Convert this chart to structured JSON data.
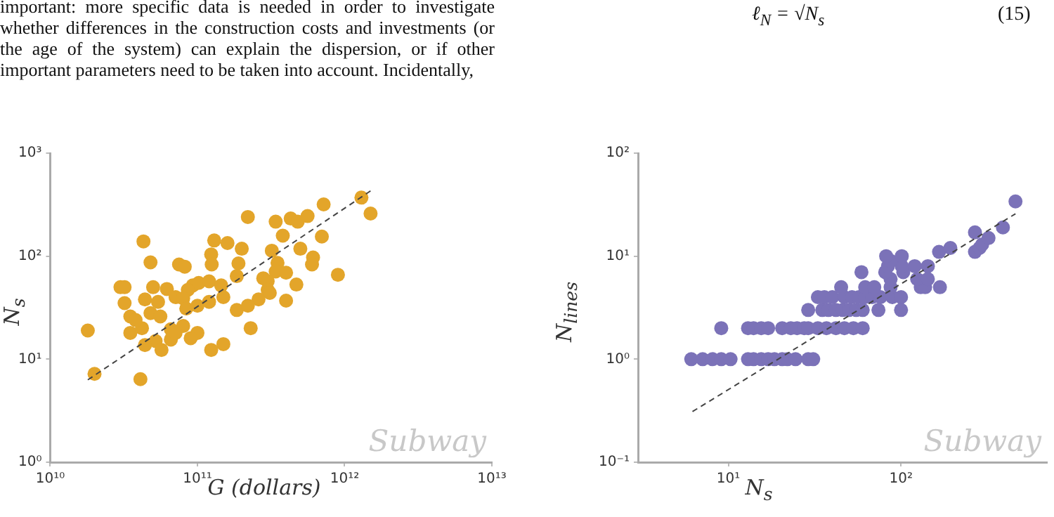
{
  "chart_data": [
    {
      "type": "scatter",
      "xlabel": "G (dollars)",
      "ylabel": "N$_{s}$",
      "log": "xy",
      "grid": false,
      "legend": false,
      "marker": "circle",
      "xlim": [
        10000000000.0,
        10000000000000.0
      ],
      "xticks": [
        {
          "value": 10000000000.0,
          "label": "10¹⁰"
        },
        {
          "value": 100000000000.0,
          "label": "10¹¹"
        },
        {
          "value": 1000000000000.0,
          "label": "10¹²"
        },
        {
          "value": 10000000000000.0,
          "label": "10¹³"
        }
      ],
      "ylim": [
        1,
        1000
      ],
      "yticks": [
        {
          "value": 1,
          "label": "10⁰"
        },
        {
          "value": 10,
          "label": "10¹"
        },
        {
          "value": 100,
          "label": "10²"
        },
        {
          "value": 1000,
          "label": "10³"
        }
      ],
      "annotations": [
        "Subway",
        "important: more specific data is needed in order to investigate whether differences in the construction costs and investments (or the age of the system) can explain the dispersion, or if other important parameters need to be taken into account. Incidentally,"
      ],
      "series": [
        {
          "color": "#e3a52a",
          "x": [
            1300000000000.0,
            1500000000000.0,
            720000000000.0,
            220000000000.0,
            340000000000.0,
            430000000000.0,
            480000000000.0,
            560000000000.0,
            700000000000.0,
            380000000000.0,
            43000000000.0,
            130000000000.0,
            160000000000.0,
            200000000000.0,
            124000000000.0,
            320000000000.0,
            500000000000.0,
            610000000000.0,
            600000000000.0,
            48000000000.0,
            75000000000.0,
            82000000000.0,
            125000000000.0,
            190000000000.0,
            350000000000.0,
            340000000000.0,
            400000000000.0,
            900000000000.0,
            185000000000.0,
            280000000000.0,
            300000000000.0,
            470000000000.0,
            30000000000.0,
            32000000000.0,
            50000000000.0,
            62000000000.0,
            93000000000.0,
            102000000000.0,
            120000000000.0,
            145000000000.0,
            86000000000.0,
            44000000000.0,
            54000000000.0,
            71000000000.0,
            80000000000.0,
            120000000000.0,
            150000000000.0,
            300000000000.0,
            310000000000.0,
            260000000000.0,
            400000000000.0,
            32000000000.0,
            35000000000.0,
            48000000000.0,
            56000000000.0,
            84000000000.0,
            100000000000.0,
            185000000000.0,
            220000000000.0,
            18000000000.0,
            35000000000.0,
            42000000000.0,
            66000000000.0,
            80000000000.0,
            100000000000.0,
            230000000000.0,
            52000000000.0,
            66000000000.0,
            90000000000.0,
            44000000000.0,
            57000000000.0,
            124000000000.0,
            150000000000.0,
            20000000000.0,
            41000000000.0,
            38000000000.0,
            71000000000.0
          ],
          "values": [
            370,
            259,
            318,
            240,
            216,
            232,
            216,
            245,
            155,
            158,
            139,
            142,
            134,
            118,
            104,
            113,
            118,
            97,
            83,
            87,
            83,
            79,
            83,
            85,
            86,
            71,
            69,
            66,
            64,
            61,
            57,
            53,
            50,
            50,
            50,
            48,
            52,
            55,
            57,
            52,
            47,
            38,
            36,
            40,
            39,
            36,
            40,
            47,
            44,
            38,
            37,
            35,
            26,
            28,
            26,
            31,
            33,
            30,
            33,
            19,
            18,
            20,
            19.5,
            21,
            18,
            20,
            15,
            15.5,
            16,
            13.7,
            12.3,
            12.3,
            14,
            7.2,
            6.4,
            24,
            18
          ]
        },
        {
          "type": "line",
          "color": "#444444",
          "line_style": "dashed",
          "marker": "none",
          "x": [
            18000000000.0,
            1500000000000.0
          ],
          "values": [
            6.3,
            430
          ]
        }
      ]
    },
    {
      "type": "scatter",
      "xlabel": "N$_{s}$",
      "ylabel": "N$_{lines}$",
      "log": "xy",
      "grid": false,
      "legend": false,
      "marker": "circle",
      "xlim": [
        3,
        700
      ],
      "xticks": [
        {
          "value": 10,
          "label": "10¹"
        },
        {
          "value": 100,
          "label": "10²"
        }
      ],
      "ylim": [
        0.1,
        100
      ],
      "yticks": [
        {
          "value": 0.1,
          "label": "10⁻¹"
        },
        {
          "value": 1,
          "label": "10⁰"
        },
        {
          "value": 10,
          "label": "10¹"
        },
        {
          "value": 100,
          "label": "10²"
        }
      ],
      "annotations": [
        "Subway",
        "ℓ$_{N}$ = √N$_{s}$",
        "(15)"
      ],
      "series": [
        {
          "color": "#7b72b8",
          "x": [
            6.1,
            7.1,
            8.1,
            9.1,
            10.3,
            13,
            14,
            15.5,
            17,
            18.5,
            20.5,
            22,
            24.5,
            29,
            31,
            9.1,
            13,
            14,
            15.5,
            17,
            20.5,
            23,
            25,
            27.5,
            29,
            33,
            37,
            42,
            47,
            53,
            60,
            29,
            35,
            38,
            42,
            46,
            50,
            55,
            60,
            74,
            100,
            33,
            36,
            40,
            47,
            52,
            57,
            62,
            68,
            76,
            89,
            100,
            45,
            62,
            70,
            87,
            130,
            138,
            168,
            87,
            124,
            143,
            59,
            81,
            103,
            84,
            101,
            120,
            143,
            87,
            82,
            101,
            166,
            268,
            193,
            285,
            295,
            321,
            268,
            389,
            460
          ],
          "values": [
            1,
            1,
            1,
            1,
            1,
            1,
            1,
            1,
            1,
            1,
            1,
            1,
            1,
            1,
            1,
            2,
            2,
            2,
            2,
            2,
            2,
            2,
            2,
            2,
            2,
            2,
            2,
            2,
            2,
            2,
            2,
            3,
            3,
            3,
            3,
            3,
            3,
            3,
            3,
            3,
            3,
            4,
            4,
            4,
            4,
            4,
            4,
            4,
            4,
            4,
            4,
            4,
            5,
            5,
            5,
            5,
            5,
            5,
            5,
            6,
            6,
            6,
            7,
            7,
            7,
            8,
            8,
            8,
            8,
            9,
            10,
            10,
            11,
            11,
            12,
            12,
            13,
            15,
            17,
            19,
            34
          ]
        },
        {
          "type": "line",
          "color": "#444444",
          "line_style": "dashed",
          "marker": "none",
          "x": [
            6.2,
            460
          ],
          "values": [
            0.31,
            25.8
          ]
        }
      ]
    }
  ]
}
